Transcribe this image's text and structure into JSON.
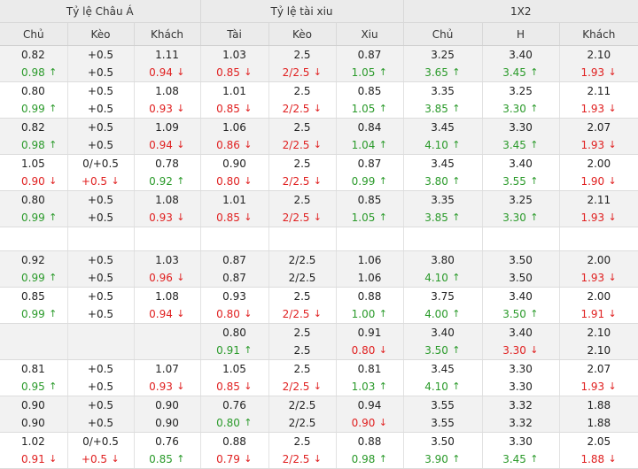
{
  "groups": [
    {
      "label": "Tỷ lệ Châu Á"
    },
    {
      "label": "Tỷ lệ tài xiu"
    },
    {
      "label": "1X2"
    }
  ],
  "columns": [
    "Chủ",
    "Kèo",
    "Khách",
    "Tài",
    "Kèo",
    "Xiu",
    "Chủ",
    "H",
    "Khách"
  ],
  "arrows": {
    "up": "↑",
    "down": "↓"
  },
  "colors": {
    "up": "#2a9a2a",
    "down": "#e02020",
    "header_bg": "#ebebeb",
    "shade_bg": "#f2f2f2"
  },
  "rows": [
    {
      "shade": true,
      "empty": false,
      "cells": [
        [
          {
            "v": "0.82",
            "d": "s"
          },
          {
            "v": "0.98",
            "d": "u"
          }
        ],
        [
          {
            "v": "+0.5",
            "d": "s"
          },
          {
            "v": "+0.5",
            "d": "s"
          }
        ],
        [
          {
            "v": "1.11",
            "d": "s"
          },
          {
            "v": "0.94",
            "d": "d"
          }
        ],
        [
          {
            "v": "1.03",
            "d": "s"
          },
          {
            "v": "0.85",
            "d": "d"
          }
        ],
        [
          {
            "v": "2.5",
            "d": "s"
          },
          {
            "v": "2/2.5",
            "d": "d"
          }
        ],
        [
          {
            "v": "0.87",
            "d": "s"
          },
          {
            "v": "1.05",
            "d": "u"
          }
        ],
        [
          {
            "v": "3.25",
            "d": "s"
          },
          {
            "v": "3.65",
            "d": "u"
          }
        ],
        [
          {
            "v": "3.40",
            "d": "s"
          },
          {
            "v": "3.45",
            "d": "u"
          }
        ],
        [
          {
            "v": "2.10",
            "d": "s"
          },
          {
            "v": "1.93",
            "d": "d"
          }
        ]
      ]
    },
    {
      "shade": false,
      "empty": false,
      "cells": [
        [
          {
            "v": "0.80",
            "d": "s"
          },
          {
            "v": "0.99",
            "d": "u"
          }
        ],
        [
          {
            "v": "+0.5",
            "d": "s"
          },
          {
            "v": "+0.5",
            "d": "s"
          }
        ],
        [
          {
            "v": "1.08",
            "d": "s"
          },
          {
            "v": "0.93",
            "d": "d"
          }
        ],
        [
          {
            "v": "1.01",
            "d": "s"
          },
          {
            "v": "0.85",
            "d": "d"
          }
        ],
        [
          {
            "v": "2.5",
            "d": "s"
          },
          {
            "v": "2/2.5",
            "d": "d"
          }
        ],
        [
          {
            "v": "0.85",
            "d": "s"
          },
          {
            "v": "1.05",
            "d": "u"
          }
        ],
        [
          {
            "v": "3.35",
            "d": "s"
          },
          {
            "v": "3.85",
            "d": "u"
          }
        ],
        [
          {
            "v": "3.25",
            "d": "s"
          },
          {
            "v": "3.30",
            "d": "u"
          }
        ],
        [
          {
            "v": "2.11",
            "d": "s"
          },
          {
            "v": "1.93",
            "d": "d"
          }
        ]
      ]
    },
    {
      "shade": true,
      "empty": false,
      "cells": [
        [
          {
            "v": "0.82",
            "d": "s"
          },
          {
            "v": "0.98",
            "d": "u"
          }
        ],
        [
          {
            "v": "+0.5",
            "d": "s"
          },
          {
            "v": "+0.5",
            "d": "s"
          }
        ],
        [
          {
            "v": "1.09",
            "d": "s"
          },
          {
            "v": "0.94",
            "d": "d"
          }
        ],
        [
          {
            "v": "1.06",
            "d": "s"
          },
          {
            "v": "0.86",
            "d": "d"
          }
        ],
        [
          {
            "v": "2.5",
            "d": "s"
          },
          {
            "v": "2/2.5",
            "d": "d"
          }
        ],
        [
          {
            "v": "0.84",
            "d": "s"
          },
          {
            "v": "1.04",
            "d": "u"
          }
        ],
        [
          {
            "v": "3.45",
            "d": "s"
          },
          {
            "v": "4.10",
            "d": "u"
          }
        ],
        [
          {
            "v": "3.30",
            "d": "s"
          },
          {
            "v": "3.45",
            "d": "u"
          }
        ],
        [
          {
            "v": "2.07",
            "d": "s"
          },
          {
            "v": "1.93",
            "d": "d"
          }
        ]
      ]
    },
    {
      "shade": false,
      "empty": false,
      "cells": [
        [
          {
            "v": "1.05",
            "d": "s"
          },
          {
            "v": "0.90",
            "d": "d"
          }
        ],
        [
          {
            "v": "0/+0.5",
            "d": "s"
          },
          {
            "v": "+0.5",
            "d": "d"
          }
        ],
        [
          {
            "v": "0.78",
            "d": "s"
          },
          {
            "v": "0.92",
            "d": "u"
          }
        ],
        [
          {
            "v": "0.90",
            "d": "s"
          },
          {
            "v": "0.80",
            "d": "d"
          }
        ],
        [
          {
            "v": "2.5",
            "d": "s"
          },
          {
            "v": "2/2.5",
            "d": "d"
          }
        ],
        [
          {
            "v": "0.87",
            "d": "s"
          },
          {
            "v": "0.99",
            "d": "u"
          }
        ],
        [
          {
            "v": "3.45",
            "d": "s"
          },
          {
            "v": "3.80",
            "d": "u"
          }
        ],
        [
          {
            "v": "3.40",
            "d": "s"
          },
          {
            "v": "3.55",
            "d": "u"
          }
        ],
        [
          {
            "v": "2.00",
            "d": "s"
          },
          {
            "v": "1.90",
            "d": "d"
          }
        ]
      ]
    },
    {
      "shade": true,
      "empty": false,
      "cells": [
        [
          {
            "v": "0.80",
            "d": "s"
          },
          {
            "v": "0.99",
            "d": "u"
          }
        ],
        [
          {
            "v": "+0.5",
            "d": "s"
          },
          {
            "v": "+0.5",
            "d": "s"
          }
        ],
        [
          {
            "v": "1.08",
            "d": "s"
          },
          {
            "v": "0.93",
            "d": "d"
          }
        ],
        [
          {
            "v": "1.01",
            "d": "s"
          },
          {
            "v": "0.85",
            "d": "d"
          }
        ],
        [
          {
            "v": "2.5",
            "d": "s"
          },
          {
            "v": "2/2.5",
            "d": "d"
          }
        ],
        [
          {
            "v": "0.85",
            "d": "s"
          },
          {
            "v": "1.05",
            "d": "u"
          }
        ],
        [
          {
            "v": "3.35",
            "d": "s"
          },
          {
            "v": "3.85",
            "d": "u"
          }
        ],
        [
          {
            "v": "3.25",
            "d": "s"
          },
          {
            "v": "3.30",
            "d": "u"
          }
        ],
        [
          {
            "v": "2.11",
            "d": "s"
          },
          {
            "v": "1.93",
            "d": "d"
          }
        ]
      ]
    },
    {
      "shade": false,
      "empty": true,
      "cells": []
    },
    {
      "shade": true,
      "empty": false,
      "cells": [
        [
          {
            "v": "0.92",
            "d": "s"
          },
          {
            "v": "0.99",
            "d": "u"
          }
        ],
        [
          {
            "v": "+0.5",
            "d": "s"
          },
          {
            "v": "+0.5",
            "d": "s"
          }
        ],
        [
          {
            "v": "1.03",
            "d": "s"
          },
          {
            "v": "0.96",
            "d": "d"
          }
        ],
        [
          {
            "v": "0.87",
            "d": "s"
          },
          {
            "v": "0.87",
            "d": "s"
          }
        ],
        [
          {
            "v": "2/2.5",
            "d": "s"
          },
          {
            "v": "2/2.5",
            "d": "s"
          }
        ],
        [
          {
            "v": "1.06",
            "d": "s"
          },
          {
            "v": "1.06",
            "d": "s"
          }
        ],
        [
          {
            "v": "3.80",
            "d": "s"
          },
          {
            "v": "4.10",
            "d": "u"
          }
        ],
        [
          {
            "v": "3.50",
            "d": "s"
          },
          {
            "v": "3.50",
            "d": "s"
          }
        ],
        [
          {
            "v": "2.00",
            "d": "s"
          },
          {
            "v": "1.93",
            "d": "d"
          }
        ]
      ]
    },
    {
      "shade": false,
      "empty": false,
      "cells": [
        [
          {
            "v": "0.85",
            "d": "s"
          },
          {
            "v": "0.99",
            "d": "u"
          }
        ],
        [
          {
            "v": "+0.5",
            "d": "s"
          },
          {
            "v": "+0.5",
            "d": "s"
          }
        ],
        [
          {
            "v": "1.08",
            "d": "s"
          },
          {
            "v": "0.94",
            "d": "d"
          }
        ],
        [
          {
            "v": "0.93",
            "d": "s"
          },
          {
            "v": "0.80",
            "d": "d"
          }
        ],
        [
          {
            "v": "2.5",
            "d": "s"
          },
          {
            "v": "2/2.5",
            "d": "d"
          }
        ],
        [
          {
            "v": "0.88",
            "d": "s"
          },
          {
            "v": "1.00",
            "d": "u"
          }
        ],
        [
          {
            "v": "3.75",
            "d": "s"
          },
          {
            "v": "4.00",
            "d": "u"
          }
        ],
        [
          {
            "v": "3.40",
            "d": "s"
          },
          {
            "v": "3.50",
            "d": "u"
          }
        ],
        [
          {
            "v": "2.00",
            "d": "s"
          },
          {
            "v": "1.91",
            "d": "d"
          }
        ]
      ]
    },
    {
      "shade": true,
      "empty": false,
      "cells": [
        [],
        [],
        [],
        [
          {
            "v": "0.80",
            "d": "s"
          },
          {
            "v": "0.91",
            "d": "u"
          }
        ],
        [
          {
            "v": "2.5",
            "d": "s"
          },
          {
            "v": "2.5",
            "d": "s"
          }
        ],
        [
          {
            "v": "0.91",
            "d": "s"
          },
          {
            "v": "0.80",
            "d": "d"
          }
        ],
        [
          {
            "v": "3.40",
            "d": "s"
          },
          {
            "v": "3.50",
            "d": "u"
          }
        ],
        [
          {
            "v": "3.40",
            "d": "s"
          },
          {
            "v": "3.30",
            "d": "d"
          }
        ],
        [
          {
            "v": "2.10",
            "d": "s"
          },
          {
            "v": "2.10",
            "d": "s"
          }
        ]
      ]
    },
    {
      "shade": false,
      "empty": false,
      "cells": [
        [
          {
            "v": "0.81",
            "d": "s"
          },
          {
            "v": "0.95",
            "d": "u"
          }
        ],
        [
          {
            "v": "+0.5",
            "d": "s"
          },
          {
            "v": "+0.5",
            "d": "s"
          }
        ],
        [
          {
            "v": "1.07",
            "d": "s"
          },
          {
            "v": "0.93",
            "d": "d"
          }
        ],
        [
          {
            "v": "1.05",
            "d": "s"
          },
          {
            "v": "0.85",
            "d": "d"
          }
        ],
        [
          {
            "v": "2.5",
            "d": "s"
          },
          {
            "v": "2/2.5",
            "d": "d"
          }
        ],
        [
          {
            "v": "0.81",
            "d": "s"
          },
          {
            "v": "1.03",
            "d": "u"
          }
        ],
        [
          {
            "v": "3.45",
            "d": "s"
          },
          {
            "v": "4.10",
            "d": "u"
          }
        ],
        [
          {
            "v": "3.30",
            "d": "s"
          },
          {
            "v": "3.30",
            "d": "s"
          }
        ],
        [
          {
            "v": "2.07",
            "d": "s"
          },
          {
            "v": "1.93",
            "d": "d"
          }
        ]
      ]
    },
    {
      "shade": true,
      "empty": false,
      "cells": [
        [
          {
            "v": "0.90",
            "d": "s"
          },
          {
            "v": "0.90",
            "d": "s"
          }
        ],
        [
          {
            "v": "+0.5",
            "d": "s"
          },
          {
            "v": "+0.5",
            "d": "s"
          }
        ],
        [
          {
            "v": "0.90",
            "d": "s"
          },
          {
            "v": "0.90",
            "d": "s"
          }
        ],
        [
          {
            "v": "0.76",
            "d": "s"
          },
          {
            "v": "0.80",
            "d": "u"
          }
        ],
        [
          {
            "v": "2/2.5",
            "d": "s"
          },
          {
            "v": "2/2.5",
            "d": "s"
          }
        ],
        [
          {
            "v": "0.94",
            "d": "s"
          },
          {
            "v": "0.90",
            "d": "d"
          }
        ],
        [
          {
            "v": "3.55",
            "d": "s"
          },
          {
            "v": "3.55",
            "d": "s"
          }
        ],
        [
          {
            "v": "3.32",
            "d": "s"
          },
          {
            "v": "3.32",
            "d": "s"
          }
        ],
        [
          {
            "v": "1.88",
            "d": "s"
          },
          {
            "v": "1.88",
            "d": "s"
          }
        ]
      ]
    },
    {
      "shade": false,
      "empty": false,
      "cells": [
        [
          {
            "v": "1.02",
            "d": "s"
          },
          {
            "v": "0.91",
            "d": "d"
          }
        ],
        [
          {
            "v": "0/+0.5",
            "d": "s"
          },
          {
            "v": "+0.5",
            "d": "d"
          }
        ],
        [
          {
            "v": "0.76",
            "d": "s"
          },
          {
            "v": "0.85",
            "d": "u"
          }
        ],
        [
          {
            "v": "0.88",
            "d": "s"
          },
          {
            "v": "0.79",
            "d": "d"
          }
        ],
        [
          {
            "v": "2.5",
            "d": "s"
          },
          {
            "v": "2/2.5",
            "d": "d"
          }
        ],
        [
          {
            "v": "0.88",
            "d": "s"
          },
          {
            "v": "0.98",
            "d": "u"
          }
        ],
        [
          {
            "v": "3.50",
            "d": "s"
          },
          {
            "v": "3.90",
            "d": "u"
          }
        ],
        [
          {
            "v": "3.30",
            "d": "s"
          },
          {
            "v": "3.45",
            "d": "u"
          }
        ],
        [
          {
            "v": "2.05",
            "d": "s"
          },
          {
            "v": "1.88",
            "d": "d"
          }
        ]
      ]
    }
  ]
}
